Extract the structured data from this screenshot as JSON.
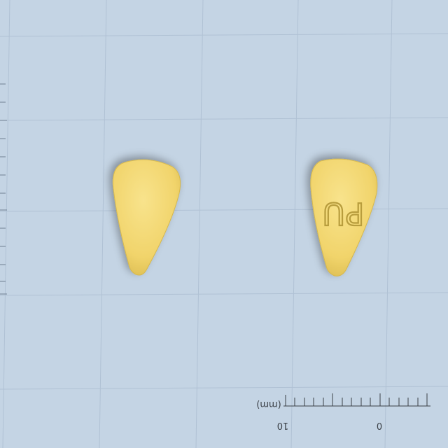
{
  "photo": {
    "subject": "pill",
    "background_color": "#c4d4e4",
    "pill_color": "#f3d873"
  },
  "tablets": [
    {
      "side": "front",
      "imprint": ""
    },
    {
      "side": "back",
      "imprint": "PU"
    }
  ],
  "scale": {
    "unit_label": "(mm)",
    "tick_labels": [
      "10",
      "0"
    ]
  }
}
